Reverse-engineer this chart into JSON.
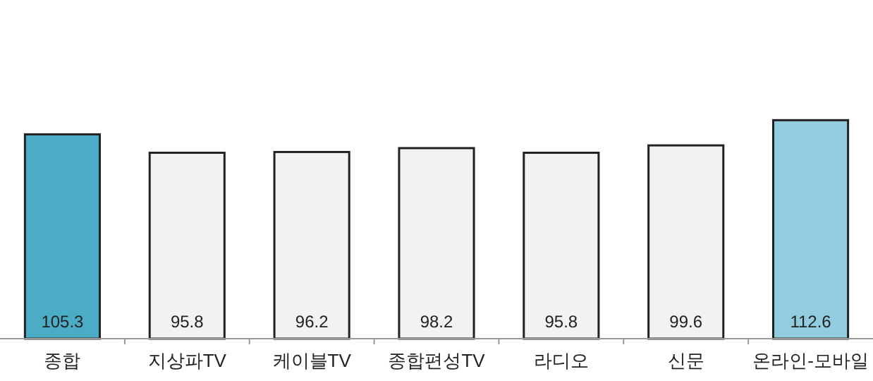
{
  "chart_data": {
    "type": "bar",
    "categories": [
      "종합",
      "지상파TV",
      "케이블TV",
      "종합편성TV",
      "라디오",
      "신문",
      "온라인-모바일"
    ],
    "values": [
      105.3,
      95.8,
      96.2,
      98.2,
      95.8,
      99.6,
      112.6
    ],
    "colors": [
      "#4bacc6",
      "#f2f2f2",
      "#f2f2f2",
      "#f2f2f2",
      "#f2f2f2",
      "#f2f2f2",
      "#92cddf"
    ],
    "data_labels": true,
    "tick_labels": "x"
  }
}
